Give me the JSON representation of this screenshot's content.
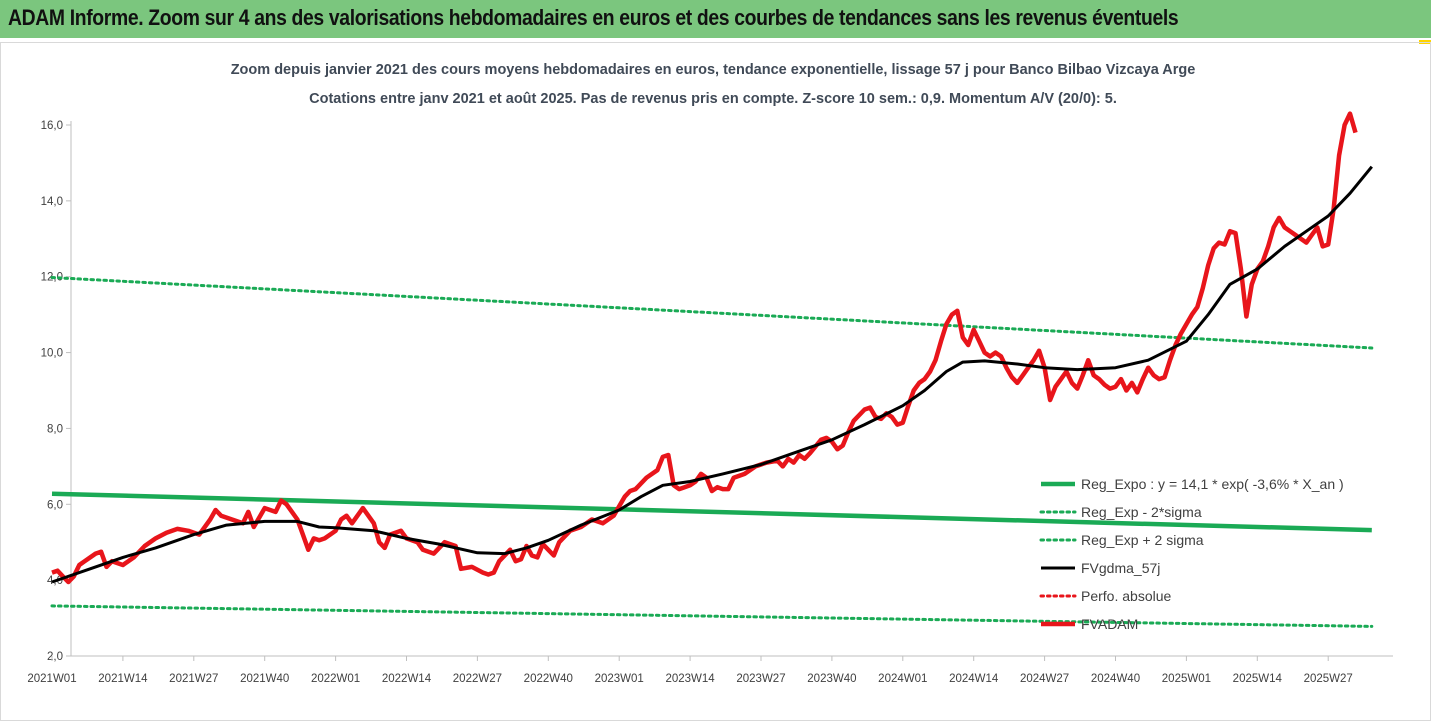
{
  "header": {
    "title": "ADAM Informe. Zoom sur 4 ans des valorisations hebdomadaires en euros et des courbes de tendances sans les revenus éventuels"
  },
  "colors": {
    "header_bg": "#7bc67e",
    "regression": "#1aaa55",
    "fv_adam": "#e8151b",
    "fvgdma": "#000000",
    "perfo": "#e8151b"
  },
  "chart_data": {
    "type": "line",
    "title_lines": [
      "Zoom depuis janvier 2021 des cours moyens hebdomadaires en euros, tendance exponentielle, lissage 57 j pour Banco Bilbao Vizcaya Arge",
      "Cotations entre janv 2021 et août 2025.  Pas de revenus pris en compte. Z-score 10 sem.: 0,9. Momentum A/V (20/0): 5."
    ],
    "ylim": [
      2.0,
      16.0
    ],
    "y_ticks": [
      "2,0",
      "4,0",
      "6,0",
      "8,0",
      "10,0",
      "12,0",
      "14,0",
      "16,0"
    ],
    "x_ticks": [
      "2021W01",
      "2021W14",
      "2021W27",
      "2021W40",
      "2022W01",
      "2022W14",
      "2022W27",
      "2022W40",
      "2023W01",
      "2023W14",
      "2023W27",
      "2023W40",
      "2024W01",
      "2024W14",
      "2024W27",
      "2024W40",
      "2025W01",
      "2025W14",
      "2025W27"
    ],
    "grid": false,
    "legend_position": "bottom-right",
    "series": [
      {
        "name": "Reg_Expo : y = 14,1 * exp( -3,6% *  X_an )",
        "style": "solid",
        "color": "#1aaa55",
        "points": [
          [
            "2021W01",
            6.28
          ],
          [
            "2025W35",
            5.32
          ]
        ]
      },
      {
        "name": "Reg_Exp - 2*sigma",
        "style": "dotted",
        "color": "#1aaa55",
        "points": [
          [
            "2021W01",
            3.32
          ],
          [
            "2025W35",
            2.78
          ]
        ]
      },
      {
        "name": "Reg_Exp + 2 sigma",
        "style": "dotted",
        "color": "#1aaa55",
        "points": [
          [
            "2021W01",
            11.98
          ],
          [
            "2025W35",
            10.12
          ]
        ]
      },
      {
        "name": "FVgdma_57j",
        "style": "solid",
        "color": "#000000",
        "points": [
          [
            "2021W01",
            3.95
          ],
          [
            "2021W08",
            4.3
          ],
          [
            "2021W14",
            4.6
          ],
          [
            "2021W20",
            4.85
          ],
          [
            "2021W27",
            5.2
          ],
          [
            "2021W33",
            5.45
          ],
          [
            "2021W40",
            5.55
          ],
          [
            "2021W46",
            5.55
          ],
          [
            "2021W50",
            5.4
          ],
          [
            "2022W01",
            5.38
          ],
          [
            "2022W08",
            5.3
          ],
          [
            "2022W14",
            5.1
          ],
          [
            "2022W20",
            4.95
          ],
          [
            "2022W27",
            4.72
          ],
          [
            "2022W32",
            4.7
          ],
          [
            "2022W36",
            4.85
          ],
          [
            "2022W40",
            5.05
          ],
          [
            "2022W46",
            5.45
          ],
          [
            "2023W01",
            5.85
          ],
          [
            "2023W05",
            6.2
          ],
          [
            "2023W09",
            6.5
          ],
          [
            "2023W14",
            6.6
          ],
          [
            "2023W20",
            6.8
          ],
          [
            "2023W27",
            7.05
          ],
          [
            "2023W33",
            7.35
          ],
          [
            "2023W40",
            7.7
          ],
          [
            "2023W46",
            8.1
          ],
          [
            "2024W01",
            8.6
          ],
          [
            "2024W05",
            9.0
          ],
          [
            "2024W09",
            9.5
          ],
          [
            "2024W12",
            9.75
          ],
          [
            "2024W16",
            9.78
          ],
          [
            "2024W22",
            9.7
          ],
          [
            "2024W27",
            9.6
          ],
          [
            "2024W33",
            9.55
          ],
          [
            "2024W40",
            9.6
          ],
          [
            "2024W46",
            9.8
          ],
          [
            "2025W01",
            10.3
          ],
          [
            "2025W05",
            11.0
          ],
          [
            "2025W09",
            11.8
          ],
          [
            "2025W14",
            12.2
          ],
          [
            "2025W19",
            12.8
          ],
          [
            "2025W23",
            13.2
          ],
          [
            "2025W27",
            13.6
          ],
          [
            "2025W31",
            14.2
          ],
          [
            "2025W35",
            14.9
          ]
        ]
      },
      {
        "name": "Perfo. absolue",
        "style": "dotted",
        "color": "#e8151b",
        "points": []
      },
      {
        "name": "FVADAM",
        "style": "solid",
        "color": "#e8151b",
        "points": [
          [
            "2021W01",
            4.2
          ],
          [
            "2021W02",
            4.25
          ],
          [
            "2021W03",
            4.1
          ],
          [
            "2021W04",
            3.95
          ],
          [
            "2021W05",
            4.1
          ],
          [
            "2021W06",
            4.4
          ],
          [
            "2021W07",
            4.5
          ],
          [
            "2021W08",
            4.6
          ],
          [
            "2021W09",
            4.7
          ],
          [
            "2021W10",
            4.75
          ],
          [
            "2021W11",
            4.35
          ],
          [
            "2021W12",
            4.5
          ],
          [
            "2021W13",
            4.45
          ],
          [
            "2021W14",
            4.4
          ],
          [
            "2021W16",
            4.6
          ],
          [
            "2021W18",
            4.9
          ],
          [
            "2021W20",
            5.1
          ],
          [
            "2021W22",
            5.25
          ],
          [
            "2021W24",
            5.35
          ],
          [
            "2021W26",
            5.3
          ],
          [
            "2021W28",
            5.2
          ],
          [
            "2021W30",
            5.6
          ],
          [
            "2021W31",
            5.85
          ],
          [
            "2021W32",
            5.7
          ],
          [
            "2021W34",
            5.6
          ],
          [
            "2021W36",
            5.5
          ],
          [
            "2021W37",
            5.8
          ],
          [
            "2021W38",
            5.4
          ],
          [
            "2021W40",
            5.9
          ],
          [
            "2021W42",
            5.8
          ],
          [
            "2021W43",
            6.1
          ],
          [
            "2021W44",
            6.0
          ],
          [
            "2021W46",
            5.6
          ],
          [
            "2021W47",
            5.2
          ],
          [
            "2021W48",
            4.8
          ],
          [
            "2021W49",
            5.1
          ],
          [
            "2021W50",
            5.05
          ],
          [
            "2021W51",
            5.1
          ],
          [
            "2022W01",
            5.3
          ],
          [
            "2022W02",
            5.6
          ],
          [
            "2022W03",
            5.7
          ],
          [
            "2022W04",
            5.5
          ],
          [
            "2022W06",
            5.9
          ],
          [
            "2022W08",
            5.5
          ],
          [
            "2022W09",
            5.0
          ],
          [
            "2022W10",
            4.85
          ],
          [
            "2022W11",
            5.2
          ],
          [
            "2022W13",
            5.3
          ],
          [
            "2022W14",
            5.1
          ],
          [
            "2022W16",
            5.0
          ],
          [
            "2022W17",
            4.8
          ],
          [
            "2022W19",
            4.7
          ],
          [
            "2022W21",
            5.0
          ],
          [
            "2022W23",
            4.9
          ],
          [
            "2022W24",
            4.3
          ],
          [
            "2022W26",
            4.35
          ],
          [
            "2022W28",
            4.2
          ],
          [
            "2022W29",
            4.15
          ],
          [
            "2022W30",
            4.2
          ],
          [
            "2022W31",
            4.5
          ],
          [
            "2022W33",
            4.8
          ],
          [
            "2022W34",
            4.5
          ],
          [
            "2022W35",
            4.55
          ],
          [
            "2022W36",
            4.9
          ],
          [
            "2022W37",
            4.65
          ],
          [
            "2022W38",
            4.6
          ],
          [
            "2022W39",
            4.95
          ],
          [
            "2022W40",
            4.8
          ],
          [
            "2022W41",
            4.65
          ],
          [
            "2022W42",
            5.0
          ],
          [
            "2022W44",
            5.3
          ],
          [
            "2022W46",
            5.4
          ],
          [
            "2022W48",
            5.6
          ],
          [
            "2022W50",
            5.5
          ],
          [
            "2022W52",
            5.7
          ],
          [
            "2023W02",
            6.2
          ],
          [
            "2023W03",
            6.35
          ],
          [
            "2023W04",
            6.4
          ],
          [
            "2023W06",
            6.7
          ],
          [
            "2023W08",
            6.9
          ],
          [
            "2023W09",
            7.25
          ],
          [
            "2023W10",
            7.3
          ],
          [
            "2023W11",
            6.5
          ],
          [
            "2023W12",
            6.4
          ],
          [
            "2023W13",
            6.45
          ],
          [
            "2023W14",
            6.5
          ],
          [
            "2023W15",
            6.6
          ],
          [
            "2023W16",
            6.8
          ],
          [
            "2023W17",
            6.7
          ],
          [
            "2023W18",
            6.35
          ],
          [
            "2023W19",
            6.45
          ],
          [
            "2023W20",
            6.4
          ],
          [
            "2023W21",
            6.4
          ],
          [
            "2023W22",
            6.7
          ],
          [
            "2023W24",
            6.8
          ],
          [
            "2023W26",
            7.0
          ],
          [
            "2023W28",
            7.1
          ],
          [
            "2023W30",
            7.15
          ],
          [
            "2023W31",
            7.0
          ],
          [
            "2023W32",
            7.2
          ],
          [
            "2023W33",
            7.1
          ],
          [
            "2023W34",
            7.3
          ],
          [
            "2023W35",
            7.2
          ],
          [
            "2023W36",
            7.35
          ],
          [
            "2023W38",
            7.7
          ],
          [
            "2023W39",
            7.75
          ],
          [
            "2023W40",
            7.65
          ],
          [
            "2023W41",
            7.45
          ],
          [
            "2023W42",
            7.55
          ],
          [
            "2023W43",
            7.9
          ],
          [
            "2023W44",
            8.2
          ],
          [
            "2023W46",
            8.5
          ],
          [
            "2023W47",
            8.55
          ],
          [
            "2023W48",
            8.3
          ],
          [
            "2023W49",
            8.25
          ],
          [
            "2023W50",
            8.4
          ],
          [
            "2023W51",
            8.3
          ],
          [
            "2023W52",
            8.1
          ],
          [
            "2024W01",
            8.15
          ],
          [
            "2024W02",
            8.6
          ],
          [
            "2024W03",
            9.0
          ],
          [
            "2024W04",
            9.2
          ],
          [
            "2024W05",
            9.3
          ],
          [
            "2024W06",
            9.5
          ],
          [
            "2024W07",
            9.8
          ],
          [
            "2024W08",
            10.3
          ],
          [
            "2024W09",
            10.75
          ],
          [
            "2024W10",
            11.0
          ],
          [
            "2024W11",
            11.1
          ],
          [
            "2024W12",
            10.4
          ],
          [
            "2024W13",
            10.2
          ],
          [
            "2024W14",
            10.6
          ],
          [
            "2024W15",
            10.3
          ],
          [
            "2024W16",
            10.0
          ],
          [
            "2024W17",
            9.9
          ],
          [
            "2024W18",
            10.0
          ],
          [
            "2024W19",
            9.9
          ],
          [
            "2024W20",
            9.6
          ],
          [
            "2024W21",
            9.35
          ],
          [
            "2024W22",
            9.2
          ],
          [
            "2024W23",
            9.4
          ],
          [
            "2024W24",
            9.6
          ],
          [
            "2024W25",
            9.8
          ],
          [
            "2024W26",
            10.05
          ],
          [
            "2024W27",
            9.6
          ],
          [
            "2024W28",
            8.75
          ],
          [
            "2024W29",
            9.1
          ],
          [
            "2024W30",
            9.3
          ],
          [
            "2024W31",
            9.5
          ],
          [
            "2024W32",
            9.2
          ],
          [
            "2024W33",
            9.05
          ],
          [
            "2024W34",
            9.4
          ],
          [
            "2024W35",
            9.8
          ],
          [
            "2024W36",
            9.4
          ],
          [
            "2024W37",
            9.3
          ],
          [
            "2024W38",
            9.15
          ],
          [
            "2024W39",
            9.05
          ],
          [
            "2024W40",
            9.1
          ],
          [
            "2024W41",
            9.3
          ],
          [
            "2024W42",
            9.0
          ],
          [
            "2024W43",
            9.2
          ],
          [
            "2024W44",
            8.95
          ],
          [
            "2024W45",
            9.3
          ],
          [
            "2024W46",
            9.6
          ],
          [
            "2024W47",
            9.4
          ],
          [
            "2024W48",
            9.3
          ],
          [
            "2024W49",
            9.35
          ],
          [
            "2024W50",
            9.8
          ],
          [
            "2024W51",
            10.2
          ],
          [
            "2024W52",
            10.5
          ],
          [
            "2025W02",
            11.0
          ],
          [
            "2025W03",
            11.2
          ],
          [
            "2025W04",
            11.7
          ],
          [
            "2025W05",
            12.3
          ],
          [
            "2025W06",
            12.75
          ],
          [
            "2025W07",
            12.9
          ],
          [
            "2025W08",
            12.85
          ],
          [
            "2025W09",
            13.2
          ],
          [
            "2025W10",
            13.15
          ],
          [
            "2025W11",
            12.2
          ],
          [
            "2025W12",
            10.95
          ],
          [
            "2025W13",
            11.8
          ],
          [
            "2025W14",
            12.2
          ],
          [
            "2025W15",
            12.4
          ],
          [
            "2025W16",
            12.8
          ],
          [
            "2025W17",
            13.3
          ],
          [
            "2025W18",
            13.55
          ],
          [
            "2025W19",
            13.3
          ],
          [
            "2025W20",
            13.2
          ],
          [
            "2025W21",
            13.1
          ],
          [
            "2025W22",
            13.0
          ],
          [
            "2025W23",
            12.9
          ],
          [
            "2025W24",
            13.1
          ],
          [
            "2025W25",
            13.3
          ],
          [
            "2025W26",
            12.8
          ],
          [
            "2025W27",
            12.85
          ],
          [
            "2025W28",
            13.8
          ],
          [
            "2025W29",
            15.2
          ],
          [
            "2025W30",
            16.0
          ],
          [
            "2025W31",
            16.3
          ],
          [
            "2025W32",
            15.8
          ]
        ]
      }
    ]
  }
}
